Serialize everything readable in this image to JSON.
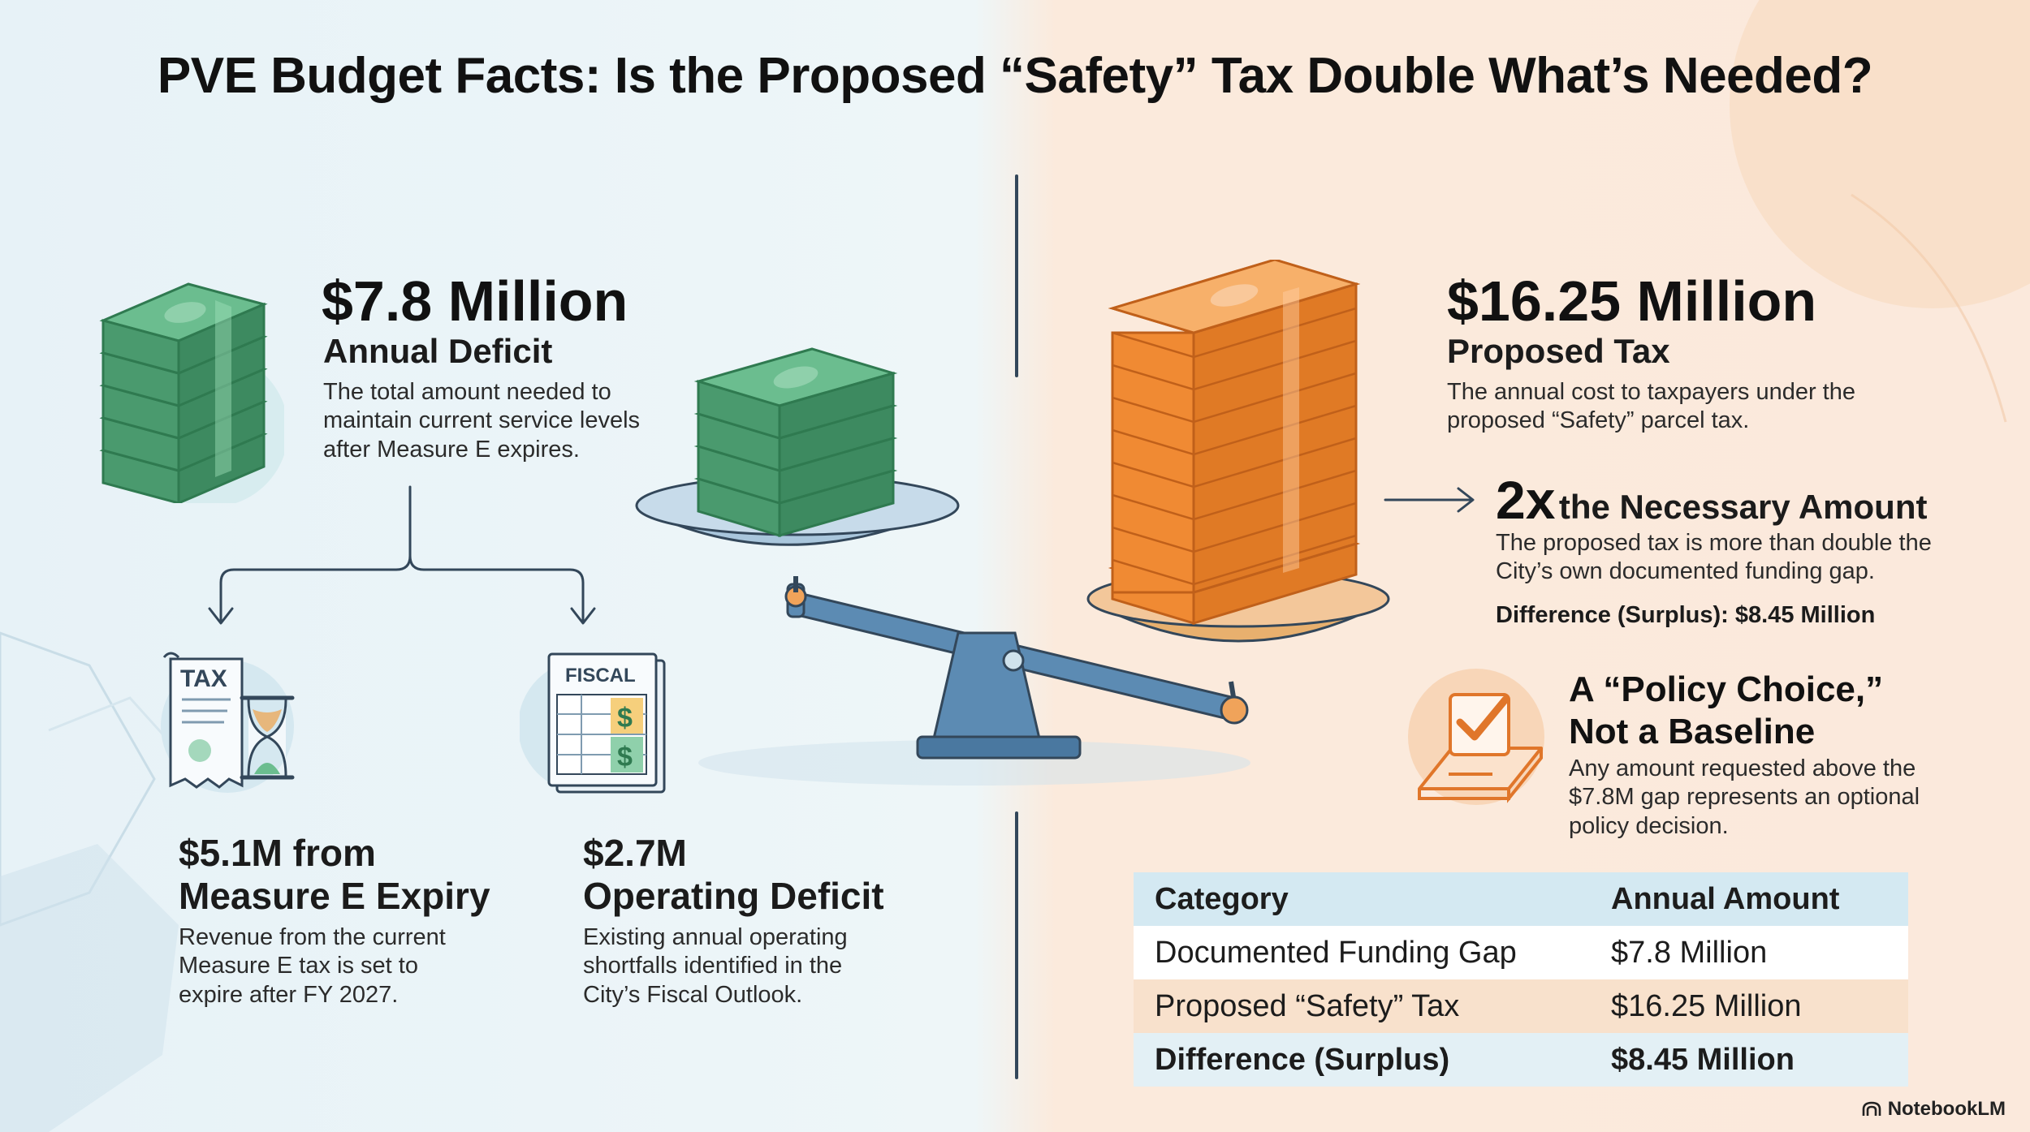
{
  "title": "PVE Budget Facts: Is the Proposed “Safety” Tax Double What’s Needed?",
  "deficit": {
    "amount": "$7.8 Million",
    "label": "Annual Deficit",
    "description": "The total amount needed to maintain current service levels after Measure E expires."
  },
  "measure_e": {
    "amount_line": "$5.1M from",
    "label": "Measure E Expiry",
    "description": "Revenue from the current Measure E tax is set to expire after FY 2027.",
    "icon_text": "TAX"
  },
  "operating": {
    "amount_line": "$2.7M",
    "label": "Operating Deficit",
    "description": "Existing annual operating shortfalls identified in the City’s Fiscal Outlook.",
    "icon_text": "FISCAL"
  },
  "proposed": {
    "amount": "$16.25 Million",
    "label": "Proposed Tax",
    "description": "The annual cost to taxpayers under the proposed “Safety” parcel tax."
  },
  "multiple": {
    "factor": "2x",
    "label": "the Necessary Amount",
    "description": "The proposed tax is more than double the City’s own documented funding gap.",
    "difference": "Difference (Surplus): $8.45 Million"
  },
  "policy": {
    "title": "A “Policy Choice,” Not a Baseline",
    "description": "Any amount requested above the $7.8M gap represents an optional policy decision."
  },
  "table": {
    "headers": [
      "Category",
      "Annual Amount"
    ],
    "rows": [
      [
        "Documented Funding Gap",
        "$7.8 Million"
      ],
      [
        "Proposed “Safety” Tax",
        "$16.25 Million"
      ],
      [
        "Difference (Surplus)",
        "$8.45 Million"
      ]
    ]
  },
  "brand": "NotebookLM",
  "colors": {
    "green": "#3f9c6a",
    "orange": "#f08a33",
    "blue": "#5c8bb3",
    "dark": "#33475a"
  }
}
